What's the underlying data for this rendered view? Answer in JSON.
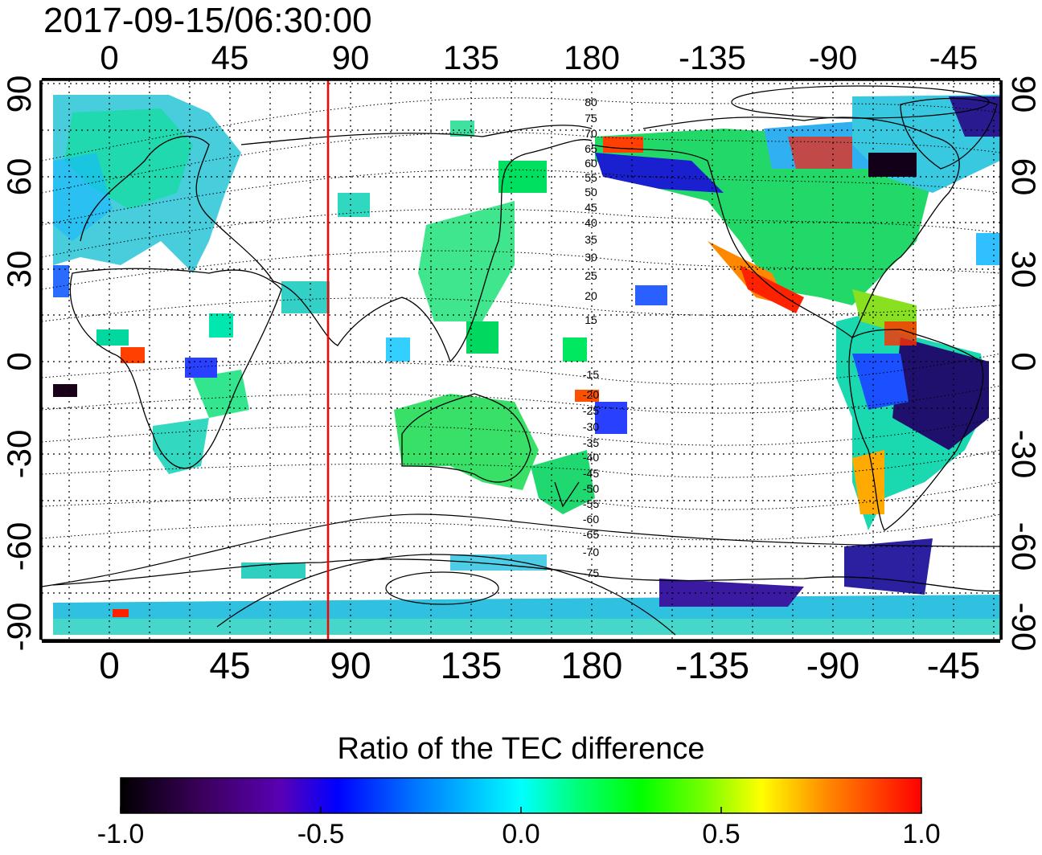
{
  "title": "2017-09-15/06:30:00",
  "map": {
    "projection": "equirectangular",
    "lon_ticks": [
      "0",
      "45",
      "90",
      "135",
      "180",
      "-135",
      "-90",
      "-45"
    ],
    "lat_ticks": [
      "90",
      "60",
      "30",
      "0",
      "-30",
      "-60",
      "-90"
    ],
    "grid": "dotted, 15° spacing",
    "magnetic_latitude_contours": {
      "north_labels": [
        "80",
        "75",
        "70",
        "65",
        "60",
        "55",
        "50",
        "45",
        "40",
        "35",
        "30",
        "25",
        "20",
        "15"
      ],
      "south_labels": [
        "-15",
        "-20",
        "-25",
        "-30",
        "-35",
        "-40",
        "-45",
        "-50",
        "-55",
        "-60",
        "-65",
        "-70",
        "-75"
      ]
    },
    "terminator_line_color": "#ff0000"
  },
  "colorbar": {
    "title": "Ratio of the TEC difference",
    "min": -1.0,
    "max": 1.0,
    "tick_labels": [
      "-1.0",
      "-0.5",
      "0.0",
      "0.5",
      "1.0"
    ],
    "colors": [
      "#000000",
      "#3a005a",
      "#5a00b4",
      "#0000ff",
      "#0078ff",
      "#00ffff",
      "#00ff78",
      "#00ff00",
      "#78ff00",
      "#ffff00",
      "#ff8c00",
      "#ff0000"
    ]
  },
  "colors": {
    "coastline": "#000000",
    "grid": "#000000",
    "frame": "#000000"
  }
}
